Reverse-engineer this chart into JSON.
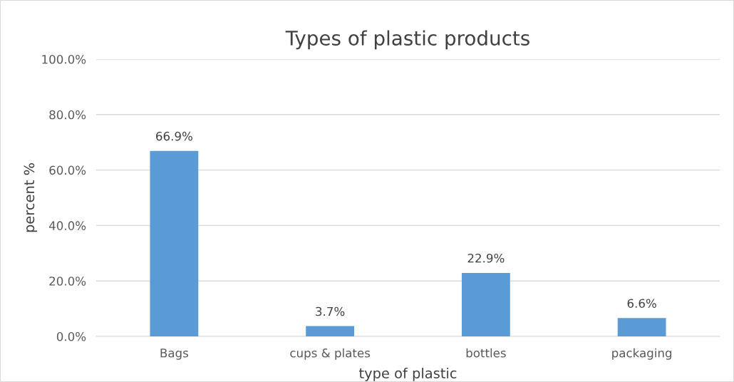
{
  "chart_data": {
    "type": "bar",
    "title": "Types of plastic products",
    "xlabel": "type of plastic",
    "ylabel": "percent %",
    "categories": [
      "Bags",
      "cups & plates",
      "bottles",
      "packaging"
    ],
    "values": [
      66.9,
      3.7,
      22.9,
      6.6
    ],
    "value_labels": [
      "66.9%",
      "3.7%",
      "22.9%",
      "6.6%"
    ],
    "color": "#5b9bd5",
    "ylim": [
      0,
      100
    ],
    "yticks": [
      {
        "value": 0,
        "label": "0.0%"
      },
      {
        "value": 20,
        "label": "20.0%"
      },
      {
        "value": 40,
        "label": "40.0%"
      },
      {
        "value": 60,
        "label": "60.0%"
      },
      {
        "value": 80,
        "label": "80.0%"
      },
      {
        "value": 100,
        "label": "100.0%"
      }
    ],
    "grid": "y",
    "legend": false
  }
}
